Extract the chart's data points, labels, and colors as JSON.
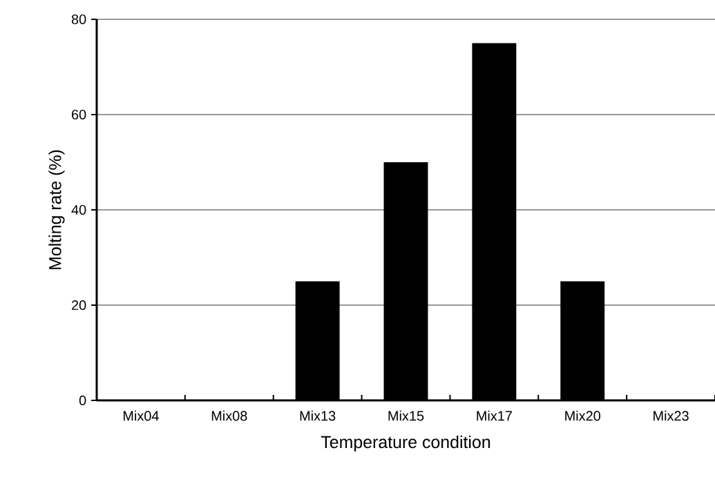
{
  "chart_data": {
    "type": "bar",
    "xlabel": "Temperature condition",
    "ylabel": "Molting rate (%)",
    "categories": [
      "Mix04",
      "Mix08",
      "Mix13",
      "Mix15",
      "Mix17",
      "Mix20",
      "Mix23"
    ],
    "values": [
      0,
      0,
      25,
      50,
      75,
      25,
      0
    ],
    "color": "#000000",
    "ylim": [
      0,
      80
    ],
    "yticks": [
      0,
      20,
      40,
      60,
      80
    ],
    "grid": "y"
  }
}
